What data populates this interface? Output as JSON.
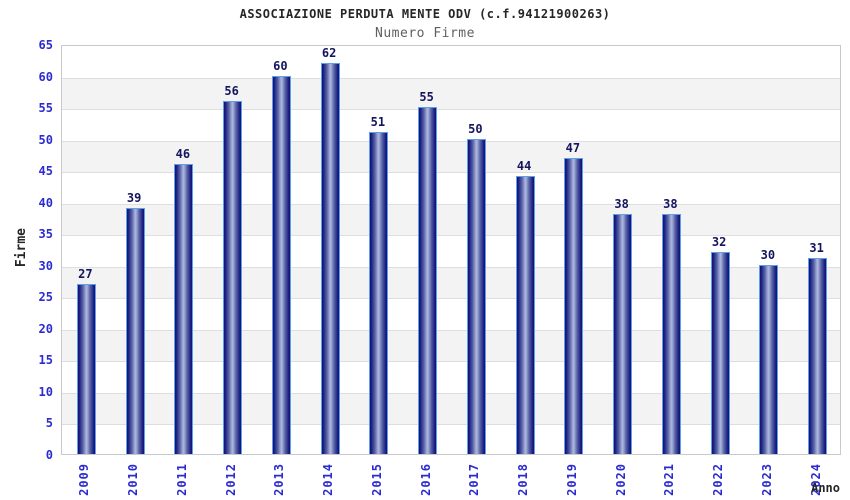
{
  "header": {
    "title": "ASSOCIAZIONE PERDUTA MENTE ODV (c.f.94121900263)",
    "subtitle": "Numero Firme"
  },
  "chart_data": {
    "type": "bar",
    "title": "ASSOCIAZIONE PERDUTA MENTE ODV (c.f.94121900263)",
    "subtitle": "Numero Firme",
    "categories": [
      "2009",
      "2010",
      "2011",
      "2012",
      "2013",
      "2014",
      "2015",
      "2016",
      "2017",
      "2018",
      "2019",
      "2020",
      "2021",
      "2022",
      "2023",
      "2024"
    ],
    "values": [
      27,
      39,
      46,
      56,
      60,
      62,
      51,
      55,
      50,
      44,
      47,
      38,
      38,
      32,
      30,
      31
    ],
    "xlabel": "Anno",
    "ylabel": "Firme",
    "ylim": [
      0,
      65
    ],
    "yticks": [
      0,
      5,
      10,
      15,
      20,
      25,
      30,
      35,
      40,
      45,
      50,
      55,
      60,
      65
    ],
    "grid": "horizontal-bands",
    "legend": false
  },
  "colors": {
    "bar_border": "#5ba0e8",
    "bar_edge_dark": "#15157c",
    "bar_mid": "#5560a5",
    "bar_center_light": "#aab4db",
    "value_label": "#15155f",
    "tick_label": "#2b2bd0",
    "band_gray": "#f3f3f3",
    "band_white": "#ffffff",
    "gridline": "#dedede",
    "plot_border": "#c9c9c9",
    "title_text": "#262626",
    "subtitle_text": "#606060"
  }
}
